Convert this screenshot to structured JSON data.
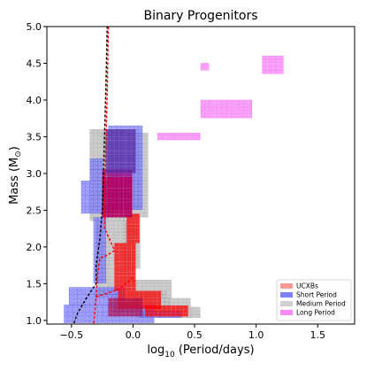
{
  "chart_data": {
    "type": "heatmap",
    "title": "Binary Progenitors",
    "xlabel_main": "log",
    "xlabel_sub": "10",
    "xlabel_rest": " (Period/days)",
    "ylabel": "Mass (M",
    "ylabel_symbol": "⊙",
    "ylabel_close": ")",
    "xlim": [
      -0.7,
      1.8
    ],
    "ylim": [
      0.95,
      5.0
    ],
    "xticks": [
      -0.5,
      0.0,
      0.5,
      1.0,
      1.5
    ],
    "xtick_labels": [
      "−0.5",
      "0.0",
      "0.5",
      "1.0",
      "1.5"
    ],
    "yticks": [
      1.0,
      1.5,
      2.0,
      2.5,
      3.0,
      3.5,
      4.0,
      4.5,
      5.0
    ],
    "ytick_labels": [
      "1.0",
      "1.5",
      "2.0",
      "2.5",
      "3.0",
      "3.5",
      "4.0",
      "4.5",
      "5.0"
    ],
    "grid": false,
    "legend_position": "bottom-right",
    "series": [
      {
        "name": "Medium Period",
        "color": "#c8c8c8",
        "edge": "#9a9a9a",
        "regions": [
          {
            "x": [
              -0.35,
              -0.1
            ],
            "y": [
              2.35,
              3.55
            ]
          },
          {
            "x": [
              -0.05,
              0.1
            ],
            "y": [
              2.4,
              3.5
            ]
          },
          {
            "x": [
              -0.08,
              0.05
            ],
            "y": [
              1.7,
              2.4
            ]
          },
          {
            "x": [
              -0.3,
              0.0
            ],
            "y": [
              1.3,
              2.3
            ]
          },
          {
            "x": [
              0.0,
              0.3
            ],
            "y": [
              1.55,
              1.2
            ]
          },
          {
            "x": [
              0.2,
              0.55
            ],
            "y": [
              1.15,
              1.03
            ]
          },
          {
            "x": [
              -0.15,
              0.25
            ],
            "y": [
              1.4,
              1.1
            ]
          },
          {
            "x": [
              0.05,
              0.45
            ],
            "y": [
              1.3,
              1.05
            ]
          }
        ]
      },
      {
        "name": "Short Period",
        "color": "#8080ff",
        "edge": "#5050e0",
        "regions": [
          {
            "x": [
              -0.42,
              -0.22
            ],
            "y": [
              2.45,
              2.85
            ]
          },
          {
            "x": [
              -0.35,
              -0.25
            ],
            "y": [
              2.9,
              3.15
            ]
          },
          {
            "x": [
              -0.32,
              -0.22
            ],
            "y": [
              1.5,
              2.35
            ]
          },
          {
            "x": [
              -0.52,
              -0.08
            ],
            "y": [
              1.2,
              1.45
            ]
          },
          {
            "x": [
              -0.56,
              0.15
            ],
            "y": [
              0.96,
              1.2
            ]
          },
          {
            "x": [
              -0.2,
              0.05
            ],
            "y": [
              2.5,
              3.6
            ]
          },
          {
            "x": [
              0.05,
              0.4
            ],
            "y": [
              1.03,
              1.12
            ]
          }
        ]
      },
      {
        "name": "UCXBs",
        "color": "#ff0000",
        "edge": "#ff0000",
        "regions": [
          {
            "x": [
              -0.25,
              -0.02
            ],
            "y": [
              2.4,
              2.9
            ]
          },
          {
            "x": [
              -0.05,
              0.05
            ],
            "y": [
              2.05,
              2.4
            ]
          },
          {
            "x": [
              -0.15,
              0.0
            ],
            "y": [
              1.4,
              2.05
            ]
          },
          {
            "x": [
              -0.12,
              0.2
            ],
            "y": [
              1.15,
              1.4
            ]
          },
          {
            "x": [
              0.1,
              0.42
            ],
            "y": [
              1.05,
              1.2
            ]
          }
        ]
      },
      {
        "name": "Long Period",
        "color": "#ff80ff",
        "edge": "#e060e0",
        "regions": [
          {
            "x": [
              0.2,
              0.55
            ],
            "y": [
              3.45,
              3.55
            ]
          },
          {
            "x": [
              0.55,
              0.95
            ],
            "y": [
              3.75,
              3.95
            ]
          },
          {
            "x": [
              1.05,
              1.2
            ],
            "y": [
              4.35,
              4.55
            ]
          },
          {
            "x": [
              0.55,
              0.62
            ],
            "y": [
              4.4,
              4.5
            ]
          }
        ]
      }
    ],
    "overlap_regions": [
      {
        "x": [
          -0.25,
          -0.02
        ],
        "y": [
          2.4,
          3.0
        ],
        "color": "#a0007a"
      },
      {
        "x": [
          -0.22,
          0.0
        ],
        "y": [
          3.0,
          3.55
        ],
        "color": "#5a2aa0"
      },
      {
        "x": [
          -0.2,
          0.05
        ],
        "y": [
          1.05,
          1.3
        ],
        "color": "#b01050"
      }
    ],
    "lines": [
      {
        "name": "",
        "color": "#000000",
        "style": "dashed",
        "points": [
          [
            -0.48,
            0.96
          ],
          [
            -0.45,
            1.1
          ],
          [
            -0.38,
            1.3
          ],
          [
            -0.3,
            1.5
          ],
          [
            -0.3,
            1.75
          ],
          [
            -0.27,
            2.1
          ],
          [
            -0.25,
            2.5
          ],
          [
            -0.24,
            3.0
          ],
          [
            -0.23,
            3.6
          ],
          [
            -0.22,
            4.2
          ],
          [
            -0.21,
            5.0
          ]
        ]
      },
      {
        "name": "",
        "color": "#ff0000",
        "style": "dashed",
        "points": [
          [
            -0.32,
            0.96
          ],
          [
            -0.3,
            1.3
          ],
          [
            -0.29,
            1.6
          ],
          [
            -0.27,
            1.85
          ],
          [
            -0.22,
            1.88
          ],
          [
            -0.15,
            1.95
          ],
          [
            -0.23,
            2.25
          ],
          [
            -0.23,
            2.8
          ],
          [
            -0.22,
            3.4
          ],
          [
            -0.21,
            4.1
          ],
          [
            -0.2,
            5.0
          ]
        ]
      },
      {
        "name": "",
        "color": "#ff0000",
        "style": "dashed",
        "points": [
          [
            -0.3,
            1.32
          ],
          [
            -0.12,
            1.42
          ],
          [
            -0.02,
            1.55
          ],
          [
            0.0,
            1.6
          ]
        ]
      }
    ],
    "legend": [
      {
        "label": "UCXBs",
        "color": "#ff9999"
      },
      {
        "label": "Short Period",
        "color": "#8080ff"
      },
      {
        "label": "Medium Period",
        "color": "#d0d0d0"
      },
      {
        "label": "Long Period",
        "color": "#ff88ff"
      }
    ]
  }
}
